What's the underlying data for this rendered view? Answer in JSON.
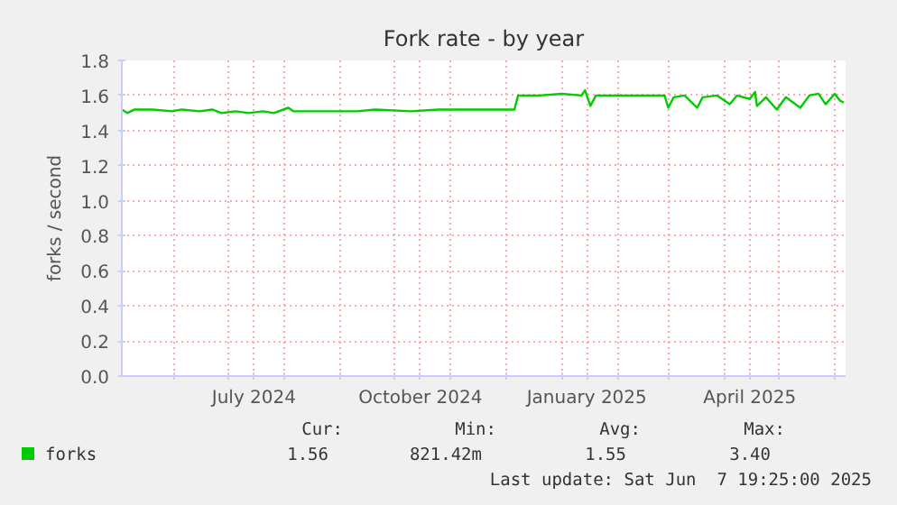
{
  "chart_data": {
    "type": "line",
    "title": "Fork rate - by year",
    "ylabel": "forks / second",
    "x": [
      "2024-05-03",
      "2024-05-06",
      "2024-05-10",
      "2024-05-20",
      "2024-05-31",
      "2024-06-05",
      "2024-06-15",
      "2024-06-22",
      "2024-06-27",
      "2024-07-05",
      "2024-07-12",
      "2024-07-20",
      "2024-07-26",
      "2024-08-03",
      "2024-08-06",
      "2024-08-20",
      "2024-09-10",
      "2024-09-20",
      "2024-10-10",
      "2024-10-25",
      "2024-11-15",
      "2024-12-06",
      "2024-12-08",
      "2024-12-20",
      "2025-01-01",
      "2025-01-12",
      "2025-01-14",
      "2025-01-17",
      "2025-01-20",
      "2025-02-10",
      "2025-02-27",
      "2025-03-01",
      "2025-03-04",
      "2025-03-10",
      "2025-03-17",
      "2025-03-20",
      "2025-03-28",
      "2025-04-04",
      "2025-04-08",
      "2025-04-15",
      "2025-04-18",
      "2025-04-19",
      "2025-04-24",
      "2025-04-30",
      "2025-05-05",
      "2025-05-13",
      "2025-05-18",
      "2025-05-23",
      "2025-05-27",
      "2025-06-01",
      "2025-06-04",
      "2025-06-06"
    ],
    "series": [
      {
        "name": "forks",
        "color": "#00cc00",
        "values": [
          1.52,
          1.5,
          1.52,
          1.52,
          1.51,
          1.52,
          1.51,
          1.52,
          1.5,
          1.51,
          1.5,
          1.51,
          1.5,
          1.53,
          1.51,
          1.51,
          1.51,
          1.52,
          1.51,
          1.52,
          1.52,
          1.52,
          1.6,
          1.6,
          1.61,
          1.6,
          1.63,
          1.54,
          1.6,
          1.6,
          1.6,
          1.53,
          1.59,
          1.6,
          1.53,
          1.59,
          1.6,
          1.55,
          1.6,
          1.58,
          1.62,
          1.54,
          1.59,
          1.52,
          1.59,
          1.53,
          1.6,
          1.61,
          1.55,
          1.61,
          1.57,
          1.56
        ]
      }
    ],
    "xlim": [
      "2024-05-03",
      "2025-06-07"
    ],
    "xticks": [
      {
        "value": "2024-06-01",
        "label": null
      },
      {
        "value": "2024-07-01",
        "label": null
      },
      {
        "value": "2024-07-15",
        "label": "July 2024"
      },
      {
        "value": "2024-08-01",
        "label": null
      },
      {
        "value": "2024-09-01",
        "label": null
      },
      {
        "value": "2024-10-01",
        "label": null
      },
      {
        "value": "2024-10-15",
        "label": "October 2024"
      },
      {
        "value": "2024-11-01",
        "label": null
      },
      {
        "value": "2024-12-01",
        "label": null
      },
      {
        "value": "2025-01-01",
        "label": null
      },
      {
        "value": "2025-01-15",
        "label": "January 2025"
      },
      {
        "value": "2025-02-01",
        "label": null
      },
      {
        "value": "2025-03-01",
        "label": null
      },
      {
        "value": "2025-04-01",
        "label": null
      },
      {
        "value": "2025-04-15",
        "label": "April 2025"
      },
      {
        "value": "2025-05-01",
        "label": null
      },
      {
        "value": "2025-06-01",
        "label": null
      }
    ],
    "ylim": [
      0,
      1.8
    ],
    "yticks": [
      {
        "value": 0,
        "label": "0.0"
      },
      {
        "value": 0.2,
        "label": "0.2"
      },
      {
        "value": 0.4,
        "label": "0.4"
      },
      {
        "value": 0.6,
        "label": "0.6"
      },
      {
        "value": 0.8,
        "label": "0.8"
      },
      {
        "value": 1.0,
        "label": "1.0"
      },
      {
        "value": 1.2,
        "label": "1.2"
      },
      {
        "value": 1.4,
        "label": "1.4"
      },
      {
        "value": 1.6,
        "label": "1.6"
      },
      {
        "value": 1.8,
        "label": "1.8"
      }
    ],
    "grid": true,
    "legend": "bottom",
    "marker": "none",
    "line_style": "solid",
    "annotations": [
      "Cur:",
      "Min:",
      "Avg:",
      "Max:",
      "1.56",
      "821.42m",
      "1.55",
      "3.40",
      "Last update: Sat Jun  7 19:25:00 2025"
    ]
  }
}
